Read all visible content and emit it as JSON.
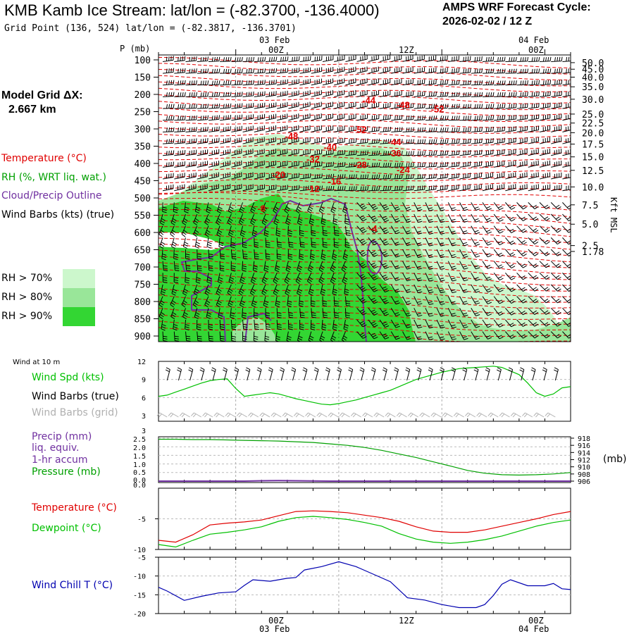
{
  "header": {
    "title": "KMB Kamb Ice Stream:  lat/lon = (-82.3700, -136.4000)",
    "subtitle": "Grid Point (136, 524) lat/lon = (-82.3817, -136.3701)",
    "cycle_label": "AMPS WRF Forecast Cycle:",
    "cycle_value": "2026-02-02 / 12  Z"
  },
  "model_grid": {
    "label": "Model Grid ΔX:",
    "value": "2.667 km"
  },
  "legend": {
    "temperature": "Temperature (°C)",
    "rh": "RH (%, WRT liq. wat.)",
    "cloud": "Cloud/Precip Outline",
    "wind": "Wind Barbs (kts) (true)",
    "rh70": "RH > 70%",
    "rh80": "RH > 80%",
    "rh90": "RH > 90%"
  },
  "colors": {
    "rh70": "#ccf7cc",
    "rh80": "#99e699",
    "rh90": "#33d633",
    "temperature": "#e00000",
    "rh_text": "#00a000",
    "cloud": "#7030a0",
    "wind_spd": "#00c000",
    "grid_barb": "#b0b0b0",
    "dewpoint": "#00c000",
    "windchill": "#0000b0",
    "precip": "#7030a0",
    "pressure": "#00a000"
  },
  "time_axis": {
    "top_date_1": "03 Feb",
    "top_time_1": "00Z",
    "top_time_2": "12Z",
    "top_date_2": "04 Feb",
    "top_time_3": "00Z",
    "bot_time_1": "00Z",
    "bot_date_1": "03 Feb",
    "bot_time_2": "12Z",
    "bot_time_3": "00Z",
    "bot_date_2": "04 Feb"
  },
  "panel_labels": {
    "wind10m": "Wind at 10 m",
    "wind_spd": "Wind Spd (kts)",
    "wind_barbs_true": "Wind Barbs (true)",
    "wind_barbs_grid": "Wind Barbs (grid)",
    "precip": "Precip (mm)",
    "liq": "liq. equiv.",
    "accum": "1-hr accum",
    "pressure": "Pressure (mb)",
    "pressure_unit": "(mb)",
    "temperature": "Temperature (°C)",
    "dewpoint": "Dewpoint (°C)",
    "windchill": "Wind Chill T (°C)",
    "kft": "Kft MSL"
  },
  "chart_data": [
    {
      "type": "heatmap",
      "name": "time-height cross section",
      "ylabel": "P (mb)",
      "ylim": [
        900,
        100
      ],
      "pressure_ticks": [
        "100",
        "150",
        "200",
        "250",
        "300",
        "350",
        "400",
        "450",
        "500",
        "550",
        "600",
        "650",
        "700",
        "750",
        "800",
        "850",
        "900"
      ],
      "height_ticks": [
        {
          "label": "50.0",
          "p": 108
        },
        {
          "label": "45.0",
          "p": 127
        },
        {
          "label": "40.0",
          "p": 150
        },
        {
          "label": "35.0",
          "p": 178
        },
        {
          "label": "30.0",
          "p": 214
        },
        {
          "label": "25.0",
          "p": 257
        },
        {
          "label": "22.5",
          "p": 283
        },
        {
          "label": "20.0",
          "p": 311
        },
        {
          "label": "17.5",
          "p": 344
        },
        {
          "label": "15.0",
          "p": 381
        },
        {
          "label": "12.5",
          "p": 420
        },
        {
          "label": "10.0",
          "p": 468
        },
        {
          "label": "7.5",
          "p": 520
        },
        {
          "label": "5.0",
          "p": 576
        },
        {
          "label": "2.5",
          "p": 638
        },
        {
          "label": "1.78",
          "p": 655
        }
      ],
      "hours_range": [
        -9,
        39
      ],
      "temperature_labels": [
        {
          "text": "-44",
          "hour": 15.5,
          "p": 216
        },
        {
          "text": "-48",
          "hour": 19.5,
          "p": 230
        },
        {
          "text": "-52",
          "hour": 23.5,
          "p": 242
        },
        {
          "text": "-52",
          "hour": 14.5,
          "p": 301
        },
        {
          "text": "-48",
          "hour": 6.5,
          "p": 320
        },
        {
          "text": "-44",
          "hour": 18.5,
          "p": 337
        },
        {
          "text": "-40",
          "hour": 11.0,
          "p": 352
        },
        {
          "text": "-36",
          "hour": 18.5,
          "p": 369
        },
        {
          "text": "-32",
          "hour": 9.0,
          "p": 387
        },
        {
          "text": "-28",
          "hour": 14.5,
          "p": 403
        },
        {
          "text": "-24",
          "hour": 19.5,
          "p": 417
        },
        {
          "text": "-20",
          "hour": 5.0,
          "p": 432
        },
        {
          "text": "-16",
          "hour": 11.5,
          "p": 451
        },
        {
          "text": "-12",
          "hour": 9.0,
          "p": 472
        },
        {
          "text": "-8",
          "hour": 3.0,
          "p": 530
        },
        {
          "text": "-4",
          "hour": 16.0,
          "p": 588
        }
      ]
    },
    {
      "type": "line",
      "name": "wind speed 10 m",
      "ylim": [
        3,
        12
      ],
      "y_ticks": [
        "12",
        "9",
        "6",
        "3"
      ],
      "x": [
        -9,
        -8,
        -7,
        -6,
        -5,
        -4,
        -3,
        -2,
        -1,
        0,
        1,
        2,
        3,
        4,
        5,
        6,
        7,
        8,
        9,
        10,
        11,
        12,
        13,
        14,
        15,
        16,
        17,
        18,
        19,
        20,
        21,
        22,
        23,
        24,
        25,
        26,
        27,
        28,
        29,
        30,
        31,
        32,
        33,
        34,
        35,
        36,
        37,
        38,
        39
      ],
      "series": [
        {
          "name": "Wind Spd (kts)",
          "values": [
            6.2,
            6.4,
            6.9,
            7.4,
            7.9,
            8.4,
            8.8,
            9.0,
            9.1,
            7.5,
            6.2,
            6.4,
            6.6,
            6.8,
            6.6,
            6.2,
            5.8,
            5.5,
            5.2,
            4.9,
            4.8,
            5.0,
            5.3,
            5.6,
            6.0,
            6.4,
            6.8,
            7.2,
            7.8,
            8.4,
            9.0,
            9.4,
            9.8,
            10.2,
            10.5,
            10.8,
            10.9,
            11.0,
            11.1,
            11.2,
            11.0,
            10.4,
            9.8,
            8.4,
            6.8,
            6.2,
            6.6,
            7.6,
            7.8
          ]
        }
      ]
    },
    {
      "type": "line",
      "name": "precip and pressure",
      "ylim": [
        0,
        2.5
      ],
      "y_ticks_left": [
        "3",
        "2.5",
        "2.0",
        "1.5",
        "1.0",
        "0.5",
        "0.0",
        "0.0"
      ],
      "y_ticks_right": [
        "918",
        "916",
        "914",
        "912",
        "910",
        "908",
        "906"
      ],
      "pressure_range": [
        906,
        918
      ],
      "x": [
        -9,
        -7,
        -5,
        -3,
        -1,
        1,
        3,
        5,
        7,
        9,
        11,
        13,
        15,
        17,
        19,
        21,
        23,
        25,
        27,
        29,
        31,
        33,
        35,
        37,
        39
      ],
      "series": [
        {
          "name": "Pressure (mb)",
          "values": [
            917.7,
            917.7,
            917.6,
            917.6,
            917.5,
            917.4,
            917.3,
            917.2,
            917.0,
            916.8,
            916.4,
            916.0,
            915.4,
            914.6,
            913.6,
            912.6,
            911.4,
            910.2,
            909.0,
            908.2,
            907.8,
            907.7,
            907.8,
            908.0,
            908.4
          ]
        },
        {
          "name": "Precip (mm)",
          "values": [
            0,
            0,
            0,
            0,
            0,
            0,
            0.02,
            0.03,
            0.02,
            0.01,
            0,
            0,
            0,
            0,
            0,
            0,
            0,
            0,
            0,
            0,
            0,
            0,
            0,
            0,
            0
          ]
        }
      ]
    },
    {
      "type": "line",
      "name": "temperature and dewpoint",
      "ylim": [
        -10,
        0
      ],
      "y_ticks": [
        "-5",
        "-10"
      ],
      "x": [
        -9,
        -7,
        -5,
        -3,
        -1,
        1,
        3,
        5,
        7,
        9,
        11,
        13,
        15,
        17,
        19,
        21,
        23,
        25,
        27,
        29,
        31,
        33,
        35,
        37,
        39
      ],
      "series": [
        {
          "name": "Temperature (°C)",
          "values": [
            -8.5,
            -8.8,
            -7.6,
            -6.0,
            -5.7,
            -5.5,
            -5.2,
            -4.5,
            -3.8,
            -3.7,
            -3.8,
            -4.0,
            -4.4,
            -4.8,
            -5.4,
            -6.3,
            -7.0,
            -7.2,
            -7.2,
            -6.8,
            -6.2,
            -5.6,
            -5.0,
            -4.3,
            -3.8
          ]
        },
        {
          "name": "Dewpoint (°C)",
          "values": [
            -9.2,
            -9.6,
            -8.5,
            -7.5,
            -7.2,
            -6.8,
            -6.3,
            -5.4,
            -4.8,
            -4.6,
            -4.8,
            -5.1,
            -5.6,
            -6.2,
            -7.4,
            -8.3,
            -8.8,
            -9.0,
            -8.8,
            -8.4,
            -7.8,
            -7.0,
            -6.2,
            -5.6,
            -5.2
          ]
        }
      ]
    },
    {
      "type": "line",
      "name": "wind chill",
      "ylim": [
        -20,
        -5
      ],
      "y_ticks": [
        "-5",
        "-10",
        "-15",
        "-20"
      ],
      "x": [
        -9,
        -8,
        -6,
        -4,
        -2,
        0,
        1,
        2,
        4,
        6,
        7,
        8,
        10,
        12,
        14,
        16,
        18,
        20,
        22,
        24,
        26,
        28,
        29,
        30,
        31,
        32,
        34,
        36,
        37,
        38,
        39
      ],
      "series": [
        {
          "name": "Wind Chill T (°C)",
          "values": [
            -13.0,
            -14.0,
            -16.5,
            -15.4,
            -14.5,
            -14.2,
            -12.5,
            -11.0,
            -11.4,
            -10.6,
            -10.4,
            -8.4,
            -7.5,
            -6.2,
            -7.5,
            -9.5,
            -11.5,
            -15.8,
            -16.4,
            -17.6,
            -18.4,
            -18.4,
            -17.6,
            -15.2,
            -12.2,
            -11.0,
            -12.6,
            -12.6,
            -12.0,
            -13.4,
            -13.6
          ]
        }
      ]
    }
  ]
}
